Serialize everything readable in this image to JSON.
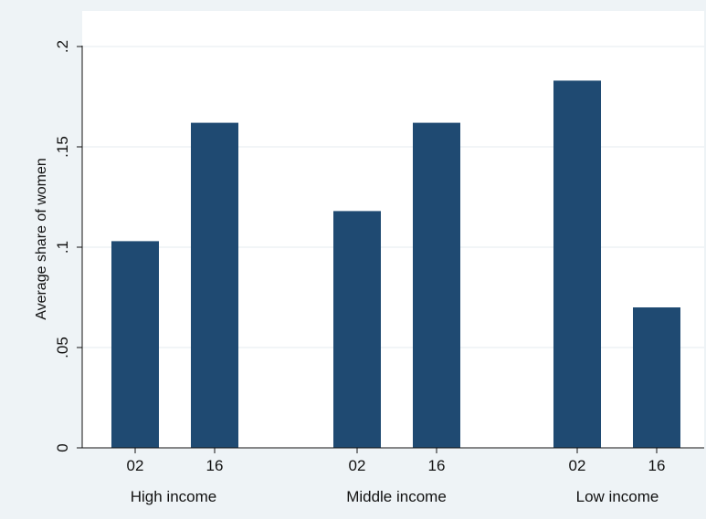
{
  "chart_data": {
    "type": "bar",
    "ylabel": "Average share of women",
    "ylim": [
      0,
      0.2
    ],
    "yticks": [
      {
        "value": 0,
        "label": "0"
      },
      {
        "value": 0.05,
        "label": ".05"
      },
      {
        "value": 0.1,
        "label": ".1"
      },
      {
        "value": 0.15,
        "label": ".15"
      },
      {
        "value": 0.2,
        "label": ".2"
      }
    ],
    "groups": [
      {
        "label": "High income",
        "bars": [
          {
            "label": "02",
            "value": 0.103
          },
          {
            "label": "16",
            "value": 0.162
          }
        ]
      },
      {
        "label": "Middle income",
        "bars": [
          {
            "label": "02",
            "value": 0.118
          },
          {
            "label": "16",
            "value": 0.162
          }
        ]
      },
      {
        "label": "Low income",
        "bars": [
          {
            "label": "02",
            "value": 0.183
          },
          {
            "label": "16",
            "value": 0.07
          }
        ]
      }
    ],
    "bar_color": "#1f4a72",
    "grid": true
  },
  "colors": {
    "background": "#eef3f6",
    "plot_area": "#ffffff",
    "grid": "#e6ebef",
    "axis": "#111111"
  }
}
